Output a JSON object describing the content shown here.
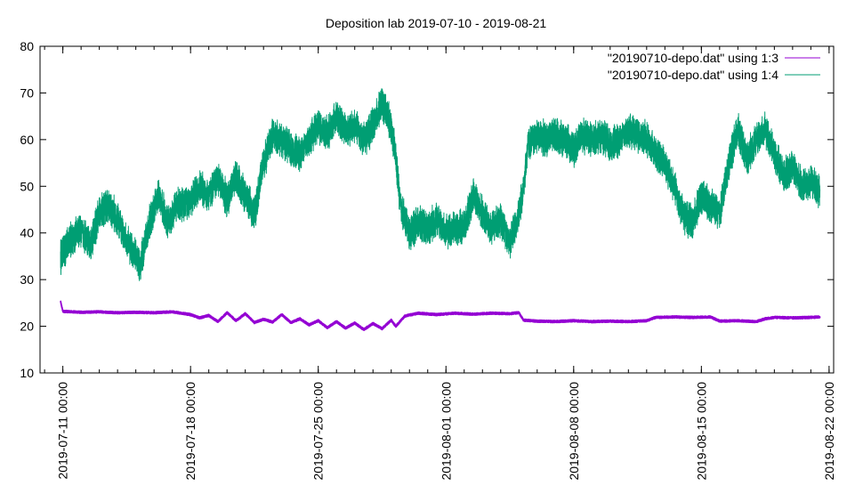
{
  "chart_data": {
    "type": "line",
    "title": "Deposition lab 2019-07-10 - 2019-08-21",
    "xlabel": "",
    "ylabel": "",
    "ylim": [
      10,
      80
    ],
    "xlim": [
      "2019-07-09 18:00",
      "2019-08-22 06:00"
    ],
    "yticks": [
      "10",
      "20",
      "30",
      "40",
      "50",
      "60",
      "70",
      "80"
    ],
    "xticks": [
      {
        "value": "2019-07-11 00:00",
        "label": "2019-07-11 00:00"
      },
      {
        "value": "2019-07-18 00:00",
        "label": "2019-07-18 00:00"
      },
      {
        "value": "2019-07-25 00:00",
        "label": "2019-07-25 00:00"
      },
      {
        "value": "2019-08-01 00:00",
        "label": "2019-08-01 00:00"
      },
      {
        "value": "2019-08-08 00:00",
        "label": "2019-08-08 00:00"
      },
      {
        "value": "2019-08-15 00:00",
        "label": "2019-08-15 00:00"
      },
      {
        "value": "2019-08-22 00:00",
        "label": "2019-08-22 00:00"
      }
    ],
    "grid": false,
    "legend_position": "top-right",
    "series": [
      {
        "name": "\"20190710-depo.dat\" using 1:3",
        "color": "#9400d3",
        "noise": 0.5,
        "points": [
          [
            "2019-07-10 21:00",
            25.3
          ],
          [
            "2019-07-11 00:00",
            23.2
          ],
          [
            "2019-07-12 00:00",
            23.0
          ],
          [
            "2019-07-13 00:00",
            23.1
          ],
          [
            "2019-07-14 00:00",
            22.9
          ],
          [
            "2019-07-15 00:00",
            23.0
          ],
          [
            "2019-07-16 00:00",
            22.9
          ],
          [
            "2019-07-17 00:00",
            23.1
          ],
          [
            "2019-07-18 00:00",
            22.5
          ],
          [
            "2019-07-18 12:00",
            21.8
          ],
          [
            "2019-07-19 00:00",
            22.3
          ],
          [
            "2019-07-19 12:00",
            21.0
          ],
          [
            "2019-07-20 00:00",
            22.9
          ],
          [
            "2019-07-20 12:00",
            21.2
          ],
          [
            "2019-07-21 00:00",
            22.7
          ],
          [
            "2019-07-21 12:00",
            20.8
          ],
          [
            "2019-07-22 00:00",
            21.5
          ],
          [
            "2019-07-22 12:00",
            20.9
          ],
          [
            "2019-07-23 00:00",
            22.5
          ],
          [
            "2019-07-23 12:00",
            20.8
          ],
          [
            "2019-07-24 00:00",
            21.6
          ],
          [
            "2019-07-24 12:00",
            20.3
          ],
          [
            "2019-07-25 00:00",
            21.2
          ],
          [
            "2019-07-25 12:00",
            19.7
          ],
          [
            "2019-07-26 00:00",
            21.0
          ],
          [
            "2019-07-26 12:00",
            19.6
          ],
          [
            "2019-07-27 00:00",
            20.7
          ],
          [
            "2019-07-27 12:00",
            19.3
          ],
          [
            "2019-07-28 00:00",
            20.6
          ],
          [
            "2019-07-28 12:00",
            19.5
          ],
          [
            "2019-07-29 00:00",
            21.3
          ],
          [
            "2019-07-29 06:00",
            20.0
          ],
          [
            "2019-07-29 18:00",
            22.2
          ],
          [
            "2019-07-30 12:00",
            22.8
          ],
          [
            "2019-07-31 12:00",
            22.5
          ],
          [
            "2019-08-01 12:00",
            22.8
          ],
          [
            "2019-08-02 12:00",
            22.6
          ],
          [
            "2019-08-03 12:00",
            22.8
          ],
          [
            "2019-08-04 12:00",
            22.7
          ],
          [
            "2019-08-05 00:00",
            22.9
          ],
          [
            "2019-08-05 06:00",
            21.3
          ],
          [
            "2019-08-06 00:00",
            21.1
          ],
          [
            "2019-08-07 00:00",
            21.0
          ],
          [
            "2019-08-08 00:00",
            21.2
          ],
          [
            "2019-08-09 00:00",
            21.0
          ],
          [
            "2019-08-10 00:00",
            21.1
          ],
          [
            "2019-08-11 00:00",
            21.0
          ],
          [
            "2019-08-12 00:00",
            21.2
          ],
          [
            "2019-08-12 12:00",
            21.9
          ],
          [
            "2019-08-13 12:00",
            22.0
          ],
          [
            "2019-08-14 12:00",
            21.9
          ],
          [
            "2019-08-15 12:00",
            22.0
          ],
          [
            "2019-08-16 00:00",
            21.1
          ],
          [
            "2019-08-17 00:00",
            21.2
          ],
          [
            "2019-08-18 00:00",
            21.0
          ],
          [
            "2019-08-18 12:00",
            21.6
          ],
          [
            "2019-08-19 00:00",
            21.9
          ],
          [
            "2019-08-20 00:00",
            21.8
          ],
          [
            "2019-08-21 00:00",
            21.9
          ],
          [
            "2019-08-21 12:00",
            22.0
          ]
        ]
      },
      {
        "name": "\"20190710-depo.dat\" using 1:4",
        "color": "#009e73",
        "noise": 6,
        "points": [
          [
            "2019-07-10 21:00",
            34.5
          ],
          [
            "2019-07-11 00:00",
            36.0
          ],
          [
            "2019-07-11 12:00",
            39.0
          ],
          [
            "2019-07-12 00:00",
            40.5
          ],
          [
            "2019-07-12 12:00",
            37.5
          ],
          [
            "2019-07-13 00:00",
            44.0
          ],
          [
            "2019-07-13 12:00",
            46.0
          ],
          [
            "2019-07-14 00:00",
            43.0
          ],
          [
            "2019-07-14 12:00",
            38.0
          ],
          [
            "2019-07-15 00:00",
            35.0
          ],
          [
            "2019-07-15 06:00",
            33.0
          ],
          [
            "2019-07-15 18:00",
            42.0
          ],
          [
            "2019-07-16 06:00",
            48.0
          ],
          [
            "2019-07-16 18:00",
            42.0
          ],
          [
            "2019-07-17 06:00",
            46.0
          ],
          [
            "2019-07-18 00:00",
            47.0
          ],
          [
            "2019-07-18 12:00",
            50.0
          ],
          [
            "2019-07-19 00:00",
            48.0
          ],
          [
            "2019-07-19 12:00",
            52.0
          ],
          [
            "2019-07-20 00:00",
            47.0
          ],
          [
            "2019-07-20 12:00",
            52.0
          ],
          [
            "2019-07-21 00:00",
            48.0
          ],
          [
            "2019-07-21 12:00",
            44.0
          ],
          [
            "2019-07-22 00:00",
            55.0
          ],
          [
            "2019-07-22 12:00",
            61.0
          ],
          [
            "2019-07-23 00:00",
            60.0
          ],
          [
            "2019-07-23 12:00",
            58.0
          ],
          [
            "2019-07-24 00:00",
            57.0
          ],
          [
            "2019-07-24 12:00",
            60.0
          ],
          [
            "2019-07-25 00:00",
            63.0
          ],
          [
            "2019-07-25 12:00",
            61.0
          ],
          [
            "2019-07-26 00:00",
            65.0
          ],
          [
            "2019-07-26 12:00",
            62.0
          ],
          [
            "2019-07-27 00:00",
            63.0
          ],
          [
            "2019-07-27 12:00",
            60.0
          ],
          [
            "2019-07-28 00:00",
            63.0
          ],
          [
            "2019-07-28 12:00",
            68.0
          ],
          [
            "2019-07-29 00:00",
            63.0
          ],
          [
            "2019-07-29 06:00",
            56.0
          ],
          [
            "2019-07-29 12:00",
            46.0
          ],
          [
            "2019-07-30 00:00",
            40.0
          ],
          [
            "2019-07-30 12:00",
            42.0
          ],
          [
            "2019-07-31 00:00",
            41.0
          ],
          [
            "2019-07-31 12:00",
            43.0
          ],
          [
            "2019-08-01 00:00",
            40.0
          ],
          [
            "2019-08-01 12:00",
            41.0
          ],
          [
            "2019-08-02 00:00",
            41.0
          ],
          [
            "2019-08-02 12:00",
            48.0
          ],
          [
            "2019-08-03 00:00",
            44.0
          ],
          [
            "2019-08-03 12:00",
            41.0
          ],
          [
            "2019-08-04 00:00",
            43.0
          ],
          [
            "2019-08-04 12:00",
            38.0
          ],
          [
            "2019-08-05 00:00",
            44.0
          ],
          [
            "2019-08-05 06:00",
            50.0
          ],
          [
            "2019-08-05 12:00",
            59.0
          ],
          [
            "2019-08-06 00:00",
            61.0
          ],
          [
            "2019-08-06 12:00",
            60.0
          ],
          [
            "2019-08-07 00:00",
            61.0
          ],
          [
            "2019-08-07 12:00",
            60.0
          ],
          [
            "2019-08-08 00:00",
            58.0
          ],
          [
            "2019-08-08 12:00",
            61.0
          ],
          [
            "2019-08-09 00:00",
            60.0
          ],
          [
            "2019-08-09 12:00",
            61.0
          ],
          [
            "2019-08-10 00:00",
            59.0
          ],
          [
            "2019-08-10 12:00",
            60.0
          ],
          [
            "2019-08-11 00:00",
            62.0
          ],
          [
            "2019-08-11 12:00",
            61.0
          ],
          [
            "2019-08-12 00:00",
            60.0
          ],
          [
            "2019-08-12 12:00",
            57.0
          ],
          [
            "2019-08-13 00:00",
            55.0
          ],
          [
            "2019-08-13 12:00",
            50.0
          ],
          [
            "2019-08-14 00:00",
            44.0
          ],
          [
            "2019-08-14 12:00",
            42.0
          ],
          [
            "2019-08-15 00:00",
            48.0
          ],
          [
            "2019-08-15 12:00",
            46.0
          ],
          [
            "2019-08-16 00:00",
            44.0
          ],
          [
            "2019-08-16 12:00",
            55.0
          ],
          [
            "2019-08-17 00:00",
            62.0
          ],
          [
            "2019-08-17 12:00",
            56.0
          ],
          [
            "2019-08-18 00:00",
            60.0
          ],
          [
            "2019-08-18 12:00",
            62.0
          ],
          [
            "2019-08-19 00:00",
            57.0
          ],
          [
            "2019-08-19 12:00",
            52.0
          ],
          [
            "2019-08-20 00:00",
            54.0
          ],
          [
            "2019-08-20 12:00",
            50.0
          ],
          [
            "2019-08-21 00:00",
            51.0
          ],
          [
            "2019-08-21 12:00",
            49.0
          ]
        ]
      }
    ]
  }
}
